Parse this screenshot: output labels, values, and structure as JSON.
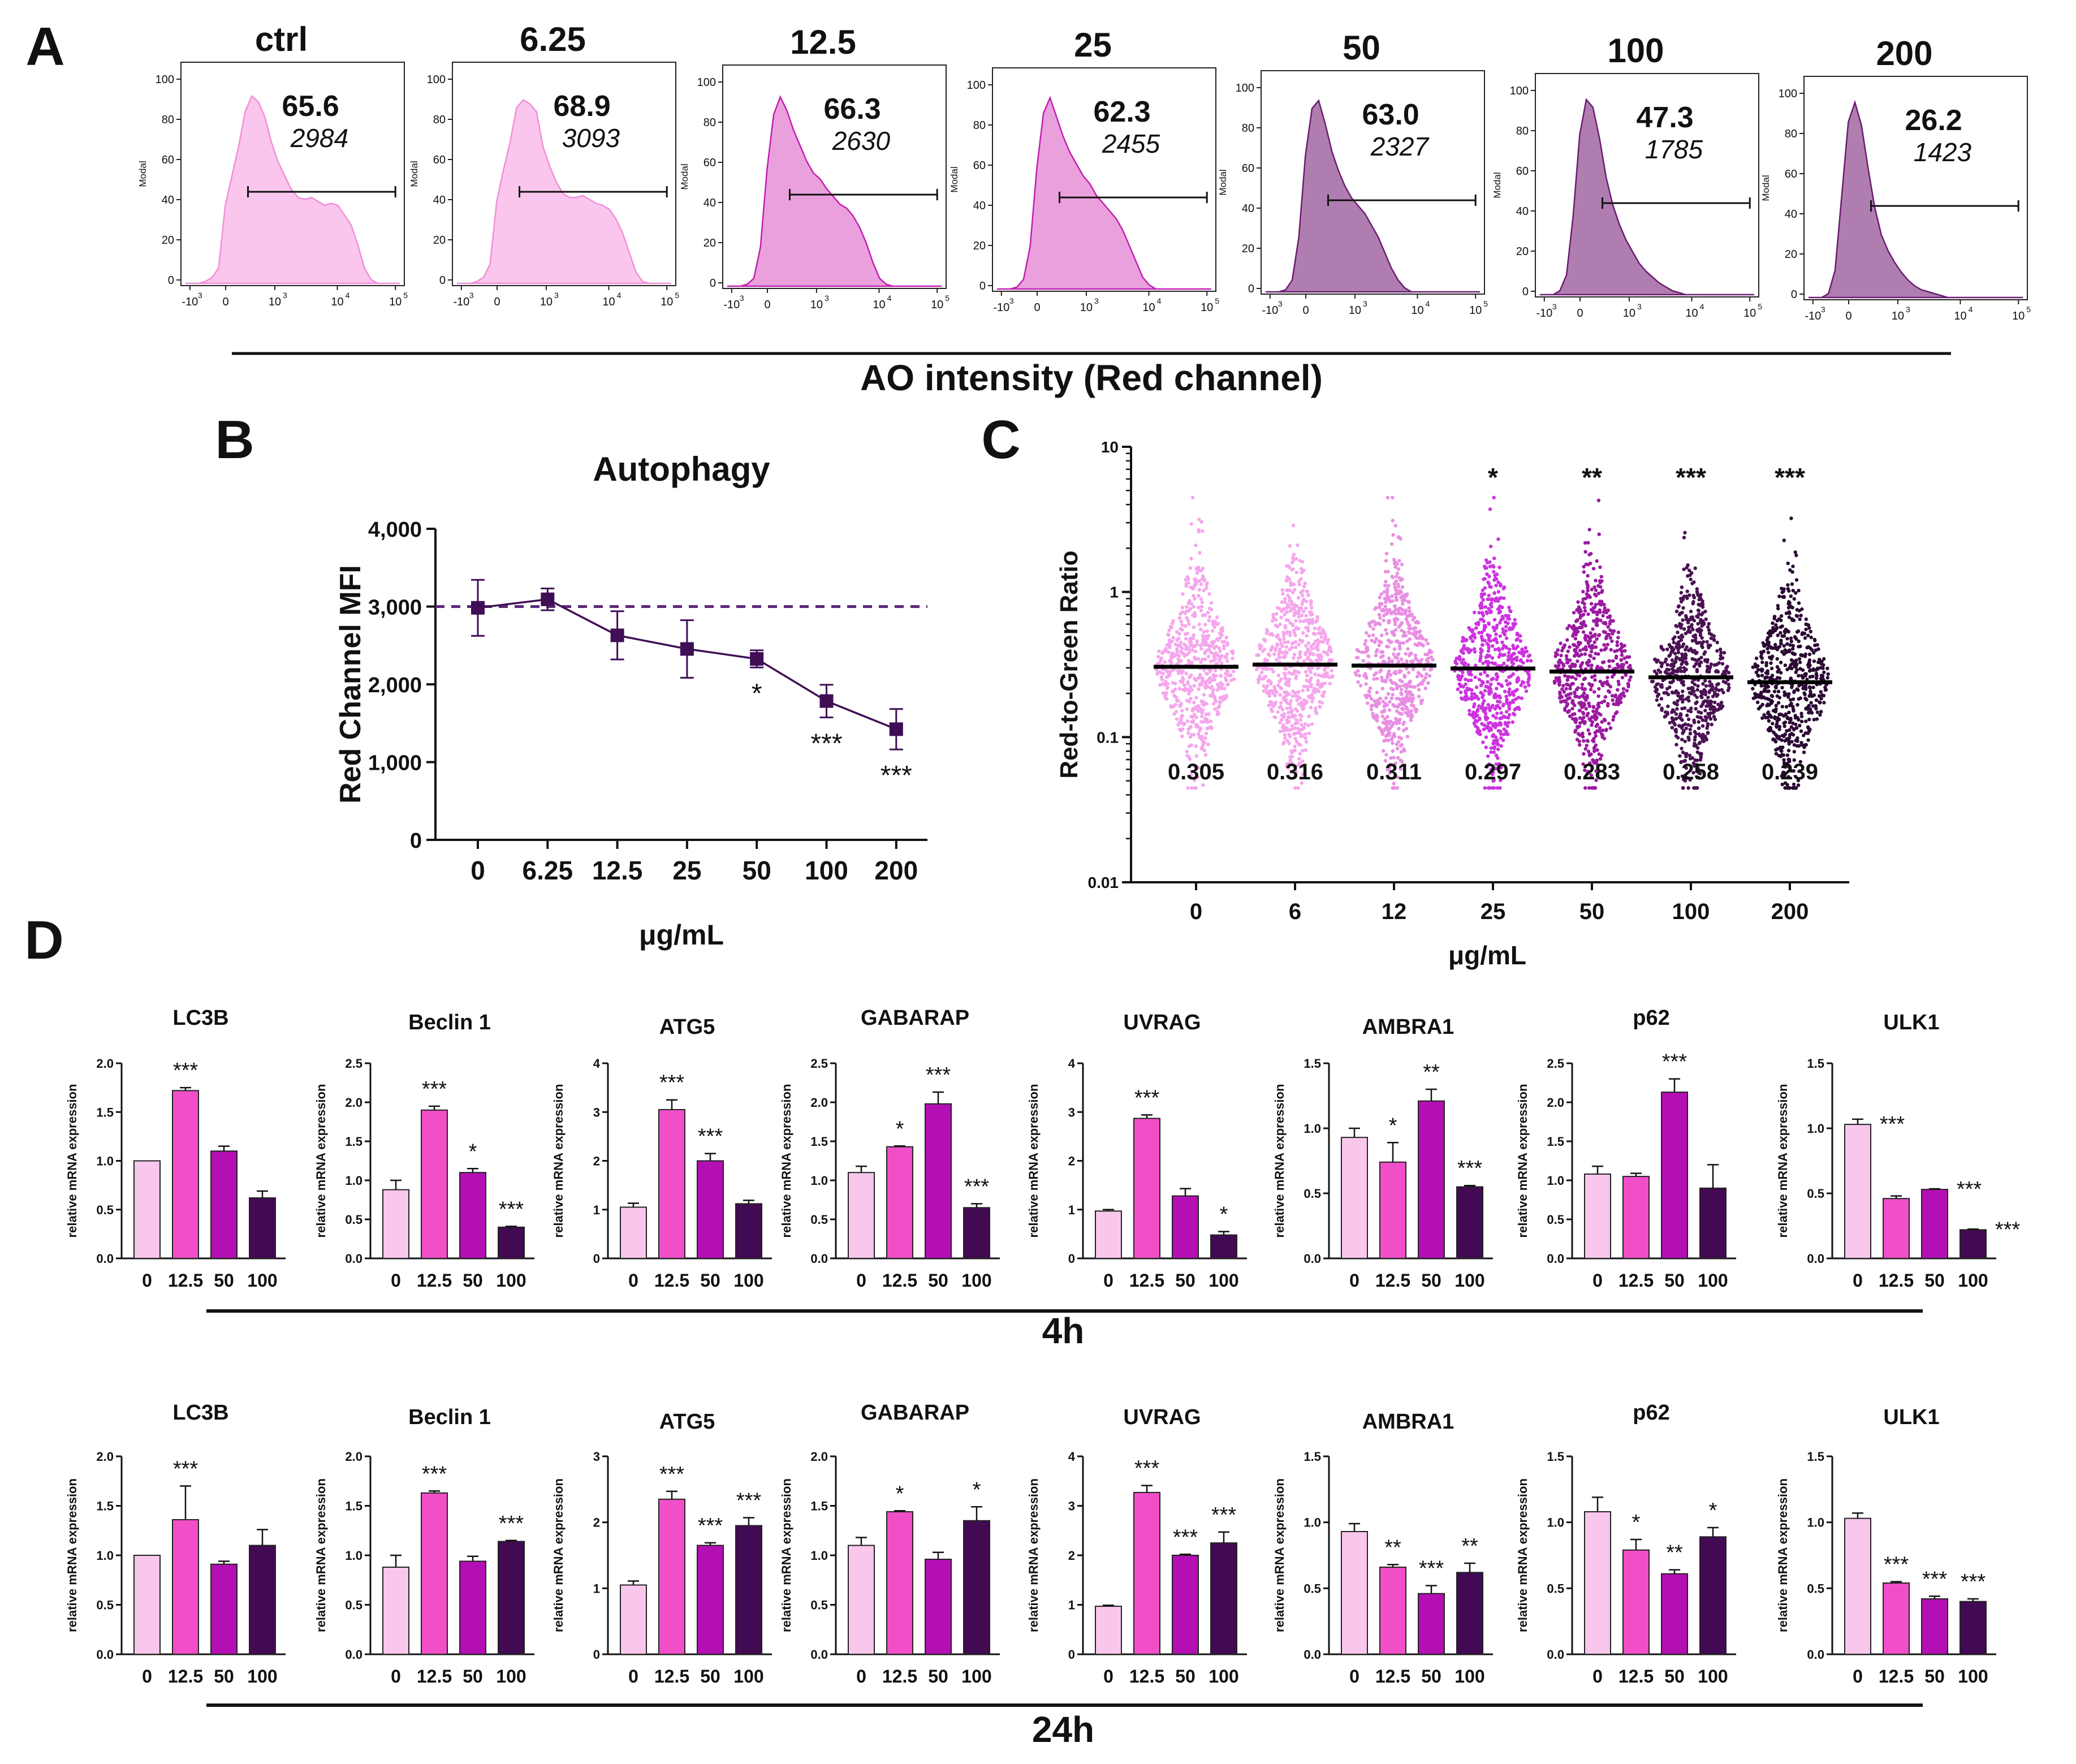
{
  "colors": {
    "bar": [
      "#f9c6ec",
      "#f04fc8",
      "#b40fb4",
      "#420a52"
    ],
    "histLight": "#fbc6ee",
    "histMid": "#eaa0dc",
    "histDark": "#b07db0",
    "lineB": "#3f0e55",
    "dashB": "#5a2a78",
    "dotC": [
      "#f5a6ec",
      "#f5a6ec",
      "#e98fe3",
      "#cd33e0",
      "#9a1ba0",
      "#4a1252",
      "#2a0a32"
    ]
  },
  "panelA": {
    "letter": "A",
    "footer": "AO intensity (Red channel)",
    "ylabel": "Modal",
    "yticks": [
      "0",
      "20",
      "40",
      "60",
      "80",
      "100"
    ],
    "xticks": [
      "-10",
      "0",
      "10",
      "10",
      "10"
    ],
    "xexps": [
      "3",
      "",
      "3",
      "4",
      "5"
    ],
    "panels": [
      {
        "title": "ctrl",
        "pct": "65.6",
        "mfi": "2984",
        "shade": "light",
        "shape": [
          0,
          1,
          3,
          8,
          40,
          55,
          70,
          88,
          96,
          93,
          85,
          72,
          62,
          55,
          48,
          44,
          43,
          44,
          42,
          40,
          41,
          40,
          35,
          30,
          20,
          8,
          2,
          0
        ]
      },
      {
        "title": "6.25",
        "pct": "68.9",
        "mfi": "3093",
        "shade": "light",
        "shape": [
          0,
          1,
          3,
          10,
          42,
          58,
          72,
          90,
          94,
          92,
          88,
          70,
          60,
          52,
          46,
          44,
          44,
          45,
          43,
          41,
          40,
          38,
          33,
          26,
          16,
          6,
          1,
          0
        ]
      },
      {
        "title": "12.5",
        "pct": "66.3",
        "mfi": "2630",
        "shade": "mid",
        "shape": [
          0,
          1,
          4,
          20,
          60,
          88,
          97,
          90,
          80,
          72,
          64,
          58,
          55,
          50,
          46,
          42,
          40,
          36,
          30,
          22,
          12,
          4,
          1,
          0,
          0,
          0,
          0,
          0
        ]
      },
      {
        "title": "25",
        "pct": "62.3",
        "mfi": "2455",
        "shade": "mid",
        "shape": [
          0,
          1,
          5,
          22,
          62,
          90,
          98,
          88,
          78,
          70,
          64,
          58,
          54,
          48,
          44,
          40,
          36,
          30,
          22,
          14,
          6,
          2,
          0,
          0,
          0,
          0,
          0,
          0
        ]
      },
      {
        "title": "50",
        "pct": "63.0",
        "mfi": "2327",
        "shade": "dark",
        "shape": [
          0,
          1,
          6,
          28,
          70,
          94,
          98,
          86,
          72,
          62,
          54,
          48,
          44,
          40,
          34,
          28,
          20,
          12,
          6,
          2,
          0,
          0,
          0,
          0,
          0,
          0,
          0,
          0
        ]
      },
      {
        "title": "100",
        "pct": "47.3",
        "mfi": "1785",
        "shade": "dark",
        "shape": [
          0,
          2,
          10,
          40,
          82,
          100,
          96,
          80,
          60,
          46,
          36,
          28,
          22,
          16,
          12,
          9,
          6,
          4,
          2,
          1,
          0,
          0,
          0,
          0,
          0,
          0,
          0,
          0
        ]
      },
      {
        "title": "200",
        "pct": "26.2",
        "mfi": "1423",
        "shade": "dark",
        "shape": [
          0,
          2,
          14,
          52,
          90,
          100,
          88,
          66,
          46,
          32,
          24,
          18,
          13,
          9,
          6,
          4,
          3,
          2,
          1,
          0,
          0,
          0,
          0,
          0,
          0,
          0,
          0,
          0
        ]
      }
    ]
  },
  "chart_data": [
    {
      "type": "line",
      "panel": "B",
      "title": "Autophagy",
      "ylabel": "Red Channel MFI",
      "xlabel": "μg/mL",
      "categories": [
        "0",
        "6.25",
        "12.5",
        "25",
        "50",
        "100",
        "200"
      ],
      "values": [
        2984,
        3093,
        2630,
        2455,
        2327,
        1785,
        1423
      ],
      "errors": [
        360,
        140,
        310,
        370,
        110,
        210,
        260
      ],
      "baseline": 3000,
      "ylim": [
        0,
        4000
      ],
      "yticks": [
        "0",
        "1,000",
        "2,000",
        "3,000",
        "4,000"
      ],
      "sig": [
        "",
        "",
        "",
        "",
        "*",
        "***",
        "***"
      ]
    },
    {
      "type": "scatter",
      "panel": "C",
      "ylabel": "Red-to-Green Ratio",
      "xlabel": "μg/mL",
      "yscale": "log",
      "ylim": [
        0.01,
        10
      ],
      "yticks": [
        "0.01",
        "0.1",
        "1",
        "10"
      ],
      "categories": [
        "0",
        "6",
        "12",
        "25",
        "50",
        "100",
        "200"
      ],
      "medians": [
        0.305,
        0.316,
        0.311,
        0.297,
        0.283,
        0.258,
        0.239
      ],
      "median_labels": [
        "0.305",
        "0.316",
        "0.311",
        "0.297",
        "0.283",
        "0.258",
        "0.239"
      ],
      "sig": [
        "",
        "",
        "",
        "*",
        "**",
        "***",
        "***"
      ]
    },
    {
      "type": "bar",
      "panel": "D",
      "timepoint": "4h",
      "categories": [
        "0",
        "12.5",
        "50",
        "100"
      ],
      "ylabel": "relative mRNA expression",
      "charts": [
        {
          "title": "LC3B",
          "ymax": 2.0,
          "yticks": [
            "0.0",
            "0.5",
            "1.0",
            "1.5",
            "2.0"
          ],
          "values": [
            1.0,
            1.72,
            1.1,
            0.62
          ],
          "errors": [
            0,
            0.03,
            0.05,
            0.07
          ],
          "sig": [
            "",
            "***",
            "",
            ""
          ]
        },
        {
          "title": "Beclin 1",
          "ymax": 2.5,
          "yticks": [
            "0.0",
            "0.5",
            "1.0",
            "1.5",
            "2.0",
            "2.5"
          ],
          "values": [
            0.88,
            1.9,
            1.1,
            0.4
          ],
          "errors": [
            0.12,
            0.05,
            0.05,
            0.01
          ],
          "sig": [
            "",
            "***",
            "*",
            "***"
          ]
        },
        {
          "title": "ATG5",
          "ymax": 4,
          "yticks": [
            "0",
            "1",
            "2",
            "3",
            "4"
          ],
          "values": [
            1.05,
            3.05,
            2.0,
            1.12
          ],
          "errors": [
            0.08,
            0.2,
            0.15,
            0.07
          ],
          "sig": [
            "",
            "***",
            "***",
            ""
          ]
        },
        {
          "title": "GABARAP",
          "ymax": 2.5,
          "yticks": [
            "0.0",
            "0.5",
            "1.0",
            "1.5",
            "2.0",
            "2.5"
          ],
          "values": [
            1.1,
            1.43,
            1.98,
            0.65
          ],
          "errors": [
            0.08,
            0.01,
            0.15,
            0.05
          ],
          "sig": [
            "",
            "*",
            "***",
            "***"
          ]
        },
        {
          "title": "UVRAG",
          "ymax": 4,
          "yticks": [
            "0",
            "1",
            "2",
            "3",
            "4"
          ],
          "values": [
            0.97,
            2.87,
            1.28,
            0.48
          ],
          "errors": [
            0.03,
            0.07,
            0.15,
            0.07
          ],
          "sig": [
            "",
            "***",
            "",
            "*"
          ]
        },
        {
          "title": "AMBRA1",
          "ymax": 1.5,
          "yticks": [
            "0.0",
            "0.5",
            "1.0",
            "1.5"
          ],
          "values": [
            0.93,
            0.74,
            1.21,
            0.55
          ],
          "errors": [
            0.07,
            0.15,
            0.09,
            0.01
          ],
          "sig": [
            "",
            "*",
            "**",
            "***"
          ]
        },
        {
          "title": "p62",
          "ymax": 2.5,
          "yticks": [
            "0.0",
            "0.5",
            "1.0",
            "1.5",
            "2.0",
            "2.5"
          ],
          "values": [
            1.08,
            1.05,
            2.13,
            0.9
          ],
          "errors": [
            0.1,
            0.04,
            0.17,
            0.3
          ],
          "sig": [
            "",
            "",
            "***",
            ""
          ]
        },
        {
          "title": "ULK1",
          "ymax": 1.5,
          "yticks": [
            "0.0",
            "0.5",
            "1.0",
            "1.5"
          ],
          "values": [
            1.03,
            0.46,
            0.53,
            0.22
          ],
          "errors": [
            0.04,
            0.02,
            0.005,
            0.005
          ],
          "sig": [
            "***",
            "",
            "***",
            "***"
          ]
        }
      ]
    },
    {
      "type": "bar",
      "panel": "D",
      "timepoint": "24h",
      "categories": [
        "0",
        "12.5",
        "50",
        "100"
      ],
      "ylabel": "relative mRNA expression",
      "charts": [
        {
          "title": "LC3B",
          "ymax": 2.0,
          "yticks": [
            "0.0",
            "0.5",
            "1.0",
            "1.5",
            "2.0"
          ],
          "values": [
            1.0,
            1.36,
            0.91,
            1.1
          ],
          "errors": [
            0,
            0.34,
            0.03,
            0.16
          ],
          "sig": [
            "",
            "***",
            "",
            ""
          ]
        },
        {
          "title": "Beclin 1",
          "ymax": 2.0,
          "yticks": [
            "0.0",
            "0.5",
            "1.0",
            "1.5",
            "2.0"
          ],
          "values": [
            0.88,
            1.63,
            0.94,
            1.14
          ],
          "errors": [
            0.12,
            0.02,
            0.05,
            0.01
          ],
          "sig": [
            "",
            "***",
            "",
            "***"
          ]
        },
        {
          "title": "ATG5",
          "ymax": 3,
          "yticks": [
            "0",
            "1",
            "2",
            "3"
          ],
          "values": [
            1.05,
            2.35,
            1.65,
            1.95
          ],
          "errors": [
            0.06,
            0.12,
            0.04,
            0.12
          ],
          "sig": [
            "",
            "***",
            "***",
            "***"
          ]
        },
        {
          "title": "GABARAP",
          "ymax": 2.0,
          "yticks": [
            "0.0",
            "0.5",
            "1.0",
            "1.5",
            "2.0"
          ],
          "values": [
            1.1,
            1.44,
            0.96,
            1.35
          ],
          "errors": [
            0.08,
            0.01,
            0.07,
            0.14
          ],
          "sig": [
            "",
            "*",
            "",
            "*"
          ]
        },
        {
          "title": "UVRAG",
          "ymax": 4,
          "yticks": [
            "0",
            "1",
            "2",
            "3",
            "4"
          ],
          "values": [
            0.97,
            3.27,
            2.0,
            2.25
          ],
          "errors": [
            0.02,
            0.14,
            0.02,
            0.22
          ],
          "sig": [
            "",
            "***",
            "***",
            "***"
          ]
        },
        {
          "title": "AMBRA1",
          "ymax": 1.5,
          "yticks": [
            "0.0",
            "0.5",
            "1.0",
            "1.5"
          ],
          "values": [
            0.93,
            0.66,
            0.46,
            0.62
          ],
          "errors": [
            0.06,
            0.02,
            0.06,
            0.07
          ],
          "sig": [
            "",
            "**",
            "***",
            "**"
          ]
        },
        {
          "title": "p62",
          "ymax": 1.5,
          "yticks": [
            "0.0",
            "0.5",
            "1.0",
            "1.5"
          ],
          "values": [
            1.08,
            0.79,
            0.61,
            0.89
          ],
          "errors": [
            0.11,
            0.08,
            0.03,
            0.07
          ],
          "sig": [
            "",
            "*",
            "**",
            "*"
          ]
        },
        {
          "title": "ULK1",
          "ymax": 1.5,
          "yticks": [
            "0.0",
            "0.5",
            "1.0",
            "1.5"
          ],
          "values": [
            1.03,
            0.54,
            0.42,
            0.4
          ],
          "errors": [
            0.04,
            0.01,
            0.02,
            0.02
          ],
          "sig": [
            "",
            "***",
            "***",
            "***"
          ]
        }
      ]
    }
  ],
  "panelB_letter": "B",
  "panelC_letter": "C",
  "panelD_letter": "D",
  "panelD_footers": [
    "4h",
    "24h"
  ]
}
